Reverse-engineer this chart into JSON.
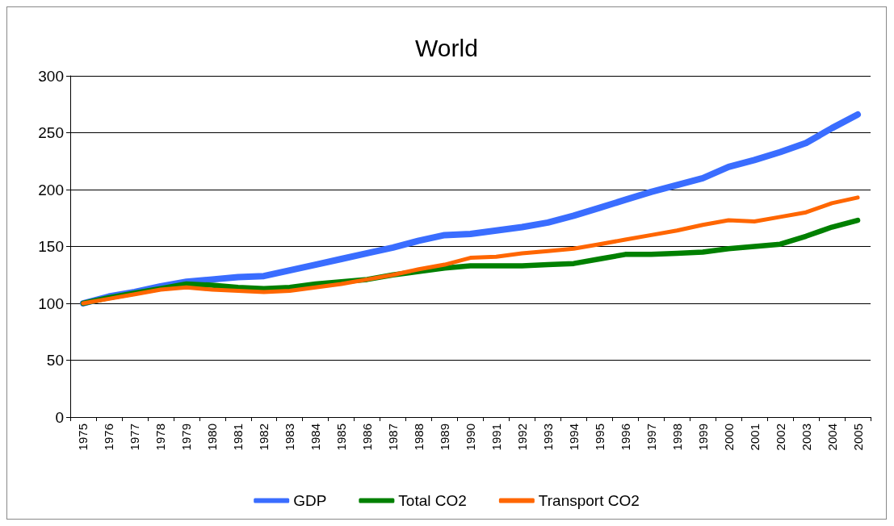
{
  "chart_data": {
    "type": "line",
    "title": "World",
    "categories": [
      "1975",
      "1976",
      "1977",
      "1978",
      "1979",
      "1980",
      "1981",
      "1982",
      "1983",
      "1984",
      "1985",
      "1986",
      "1987",
      "1988",
      "1989",
      "1990",
      "1991",
      "1992",
      "1993",
      "1994",
      "1995",
      "1996",
      "1997",
      "1998",
      "1999",
      "2000",
      "2001",
      "2002",
      "2003",
      "2004",
      "2005"
    ],
    "series": [
      {
        "name": "GDP",
        "color": "#3a6dff",
        "values": [
          100,
          106,
          110,
          115,
          119,
          121,
          123,
          124,
          129,
          134,
          139,
          144,
          149,
          155,
          160,
          161,
          164,
          167,
          171,
          177,
          184,
          191,
          198,
          204,
          210,
          220,
          226,
          233,
          241,
          254,
          266
        ]
      },
      {
        "name": "Total CO2",
        "color": "#008000",
        "values": [
          100,
          105,
          109,
          113,
          117,
          116,
          114,
          113,
          114,
          117,
          119,
          121,
          125,
          128,
          131,
          133,
          133,
          133,
          134,
          135,
          139,
          143,
          143,
          144,
          145,
          148,
          150,
          152,
          159,
          167,
          173
        ]
      },
      {
        "name": "Transport CO2",
        "color": "#ff6600",
        "values": [
          100,
          104,
          108,
          112,
          114,
          112,
          111,
          110,
          111,
          114,
          117,
          121,
          125,
          130,
          134,
          140,
          141,
          144,
          146,
          148,
          152,
          156,
          160,
          164,
          169,
          173,
          172,
          176,
          180,
          188,
          193
        ]
      }
    ],
    "ylim": [
      0,
      300
    ],
    "yticks": [
      0,
      50,
      100,
      150,
      200,
      250,
      300
    ],
    "grid": "y",
    "legend": "bottom",
    "marker": "none",
    "line_style": "solid"
  }
}
